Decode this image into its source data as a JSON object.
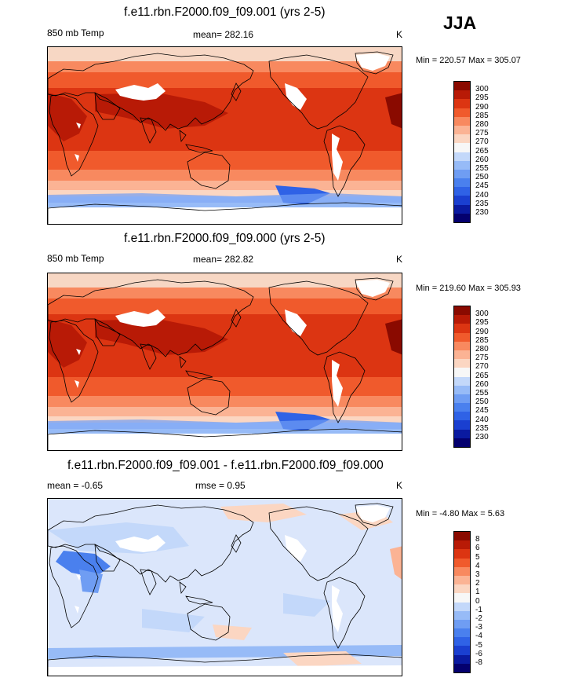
{
  "season_label": "JJA",
  "panels": [
    {
      "title": "f.e11.rbn.F2000.f09_f09.001 (yrs 2-5)",
      "left_label": "850 mb Temp",
      "center_label": "mean= 282.16",
      "right_label": "K",
      "minmax": "Min = 220.57 Max = 305.07",
      "scale": "abs"
    },
    {
      "title": "f.e11.rbn.F2000.f09_f09.000 (yrs 2-5)",
      "left_label": "850 mb Temp",
      "center_label": "mean= 282.82",
      "right_label": "K",
      "minmax": "Min = 219.60 Max = 305.93",
      "scale": "abs"
    },
    {
      "title": "f.e11.rbn.F2000.f09_f09.001 - f.e11.rbn.F2000.f09_f09.000",
      "left_label": "mean =  -0.65",
      "center_label": "rmse =  0.95",
      "right_label": "K",
      "minmax": "Min =  -4.80 Max =   5.63",
      "scale": "diff"
    }
  ],
  "chart_data": [
    {
      "type": "heatmap",
      "title": "f.e11.rbn.F2000.f09_f09.001 (yrs 2-5)",
      "variable": "850 mb Temp",
      "units": "K",
      "season": "JJA",
      "mean": 282.16,
      "min": 220.57,
      "max": 305.07,
      "colorbar_levels": [
        230,
        235,
        240,
        245,
        250,
        255,
        260,
        265,
        270,
        275,
        280,
        285,
        290,
        295,
        300
      ],
      "colorbar_colors": [
        "#04006e",
        "#0a1aa0",
        "#1a3fd0",
        "#2f62e6",
        "#4a80ee",
        "#6f9df3",
        "#97bbf7",
        "#c3d8fa",
        "#f7f7f7",
        "#fbd6c2",
        "#fbb394",
        "#f8895f",
        "#f05a2c",
        "#dc3512",
        "#b81a06",
        "#8a0a00"
      ],
      "grid": false,
      "legend_position": "right"
    },
    {
      "type": "heatmap",
      "title": "f.e11.rbn.F2000.f09_f09.000 (yrs 2-5)",
      "variable": "850 mb Temp",
      "units": "K",
      "season": "JJA",
      "mean": 282.82,
      "min": 219.6,
      "max": 305.93,
      "colorbar_levels": [
        230,
        235,
        240,
        245,
        250,
        255,
        260,
        265,
        270,
        275,
        280,
        285,
        290,
        295,
        300
      ],
      "colorbar_colors": [
        "#04006e",
        "#0a1aa0",
        "#1a3fd0",
        "#2f62e6",
        "#4a80ee",
        "#6f9df3",
        "#97bbf7",
        "#c3d8fa",
        "#f7f7f7",
        "#fbd6c2",
        "#fbb394",
        "#f8895f",
        "#f05a2c",
        "#dc3512",
        "#b81a06",
        "#8a0a00"
      ],
      "grid": false,
      "legend_position": "right"
    },
    {
      "type": "heatmap",
      "title": "f.e11.rbn.F2000.f09_f09.001 - f.e11.rbn.F2000.f09_f09.000",
      "units": "K",
      "season": "JJA",
      "mean": -0.65,
      "rmse": 0.95,
      "min": -4.8,
      "max": 5.63,
      "colorbar_levels": [
        -8,
        -6,
        -5,
        -4,
        -3,
        -2,
        -1,
        0,
        1,
        2,
        3,
        4,
        5,
        6,
        8
      ],
      "colorbar_colors": [
        "#04006e",
        "#0a1aa0",
        "#1a3fd0",
        "#2f62e6",
        "#4a80ee",
        "#6f9df3",
        "#97bbf7",
        "#c3d8fa",
        "#f7f7f7",
        "#fbd6c2",
        "#fbb394",
        "#f8895f",
        "#f05a2c",
        "#dc3512",
        "#b81a06",
        "#8a0a00"
      ],
      "grid": false,
      "legend_position": "right"
    }
  ]
}
